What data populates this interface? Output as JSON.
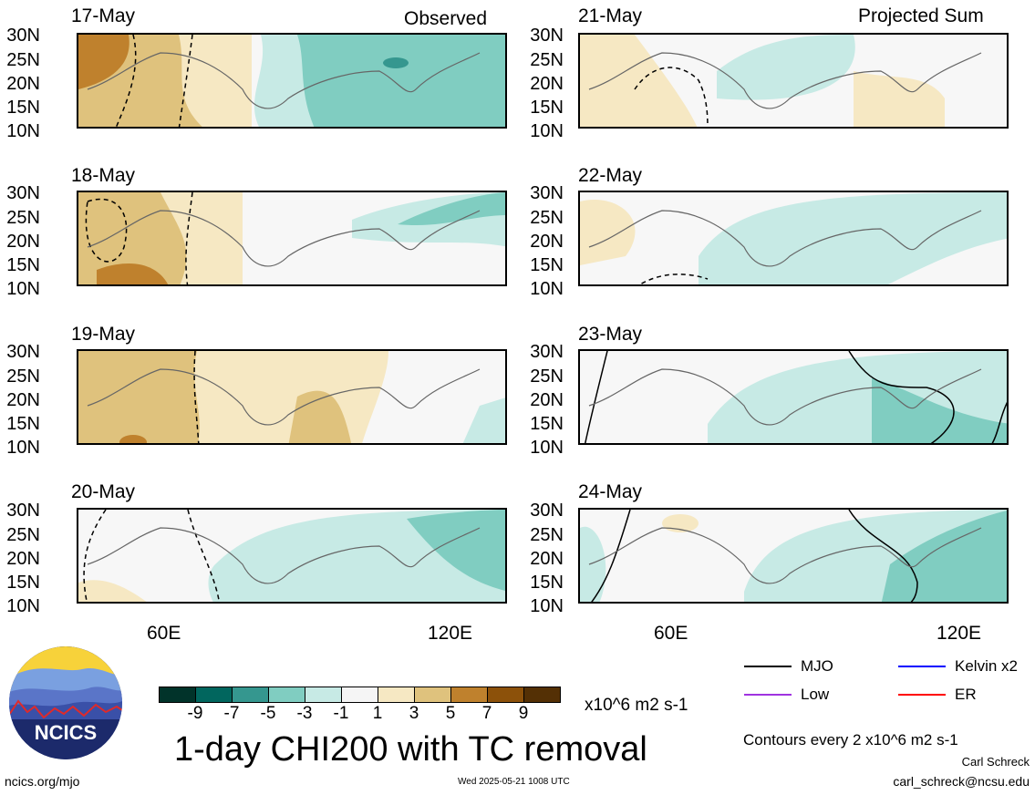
{
  "panels_left": [
    {
      "date": "17-May"
    },
    {
      "date": "18-May"
    },
    {
      "date": "19-May"
    },
    {
      "date": "20-May"
    }
  ],
  "panels_right": [
    {
      "date": "21-May"
    },
    {
      "date": "22-May"
    },
    {
      "date": "23-May"
    },
    {
      "date": "24-May"
    }
  ],
  "headers": {
    "left": "Observed",
    "right": "Projected Sum"
  },
  "lat_labels": [
    "30N",
    "25N",
    "20N",
    "15N",
    "10N"
  ],
  "lon_labels": [
    "60E",
    "120E"
  ],
  "colorbar": {
    "colors": [
      "#01332a",
      "#01665e",
      "#35978f",
      "#80cdc1",
      "#c7eae5",
      "#f5f5f5",
      "#f6e8c3",
      "#dfc27d",
      "#bf812d",
      "#8c510a",
      "#543005"
    ],
    "labels": [
      "-9",
      "-7",
      "-5",
      "-3",
      "-1",
      "1",
      "3",
      "5",
      "7",
      "9"
    ],
    "units": "x10^6 m2 s-1"
  },
  "title": "1-day CHI200 with TC removal",
  "legend": [
    {
      "label": "MJO",
      "color": "#000000"
    },
    {
      "label": "Kelvin x2",
      "color": "#0000ff"
    },
    {
      "label": "Low",
      "color": "#a033e0"
    },
    {
      "label": "ER",
      "color": "#ff0000"
    }
  ],
  "contours_note": "Contours every 2 x10^6 m2 s-1",
  "author": "Carl Schreck",
  "email": "carl_schreck@ncsu.edu",
  "website": "ncics.org/mjo",
  "timestamp": "Wed 2025-05-21 1008 UTC",
  "logo_text": "NCICS"
}
